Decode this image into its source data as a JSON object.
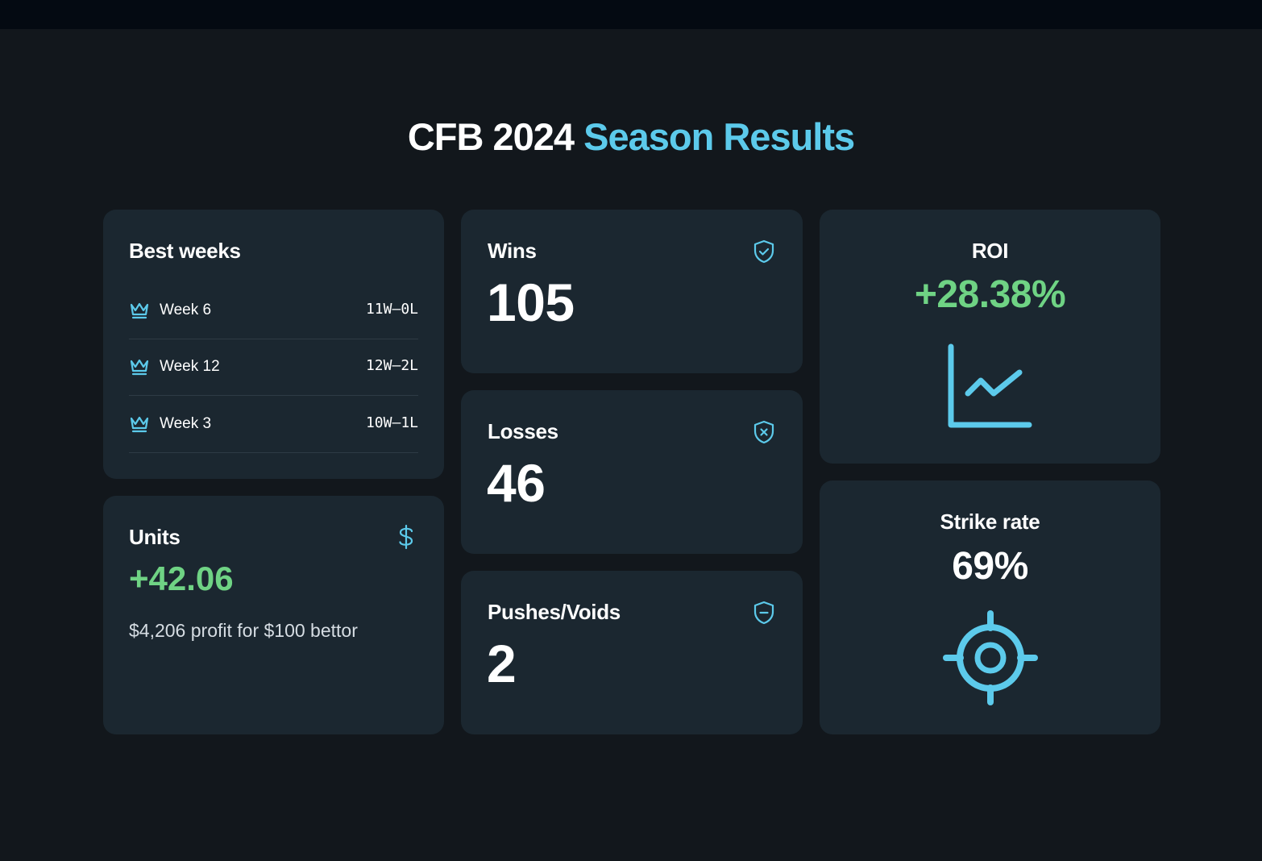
{
  "title": {
    "main": "CFB 2024",
    "accent": "Season Results"
  },
  "colors": {
    "accent": "#5ccaeb",
    "positive": "#6fd384",
    "card": "#1b2730",
    "background": "#12171c"
  },
  "best_weeks": {
    "label": "Best weeks",
    "icon": "crown-icon",
    "rows": [
      {
        "week": "Week 6",
        "record": "11W–0L"
      },
      {
        "week": "Week 12",
        "record": "12W–2L"
      },
      {
        "week": "Week 3",
        "record": "10W–1L"
      }
    ]
  },
  "units": {
    "label": "Units",
    "value": "+42.06",
    "subtitle": "$4,206 profit for $100 bettor",
    "icon": "dollar-icon"
  },
  "wins": {
    "label": "Wins",
    "value": "105",
    "icon": "shield-check-icon"
  },
  "losses": {
    "label": "Losses",
    "value": "46",
    "icon": "shield-x-icon"
  },
  "pushes": {
    "label": "Pushes/Voids",
    "value": "2",
    "icon": "shield-minus-icon"
  },
  "roi": {
    "label": "ROI",
    "value": "+28.38%",
    "icon": "chart-line-icon"
  },
  "strike_rate": {
    "label": "Strike rate",
    "value": "69%",
    "icon": "crosshair-icon"
  }
}
